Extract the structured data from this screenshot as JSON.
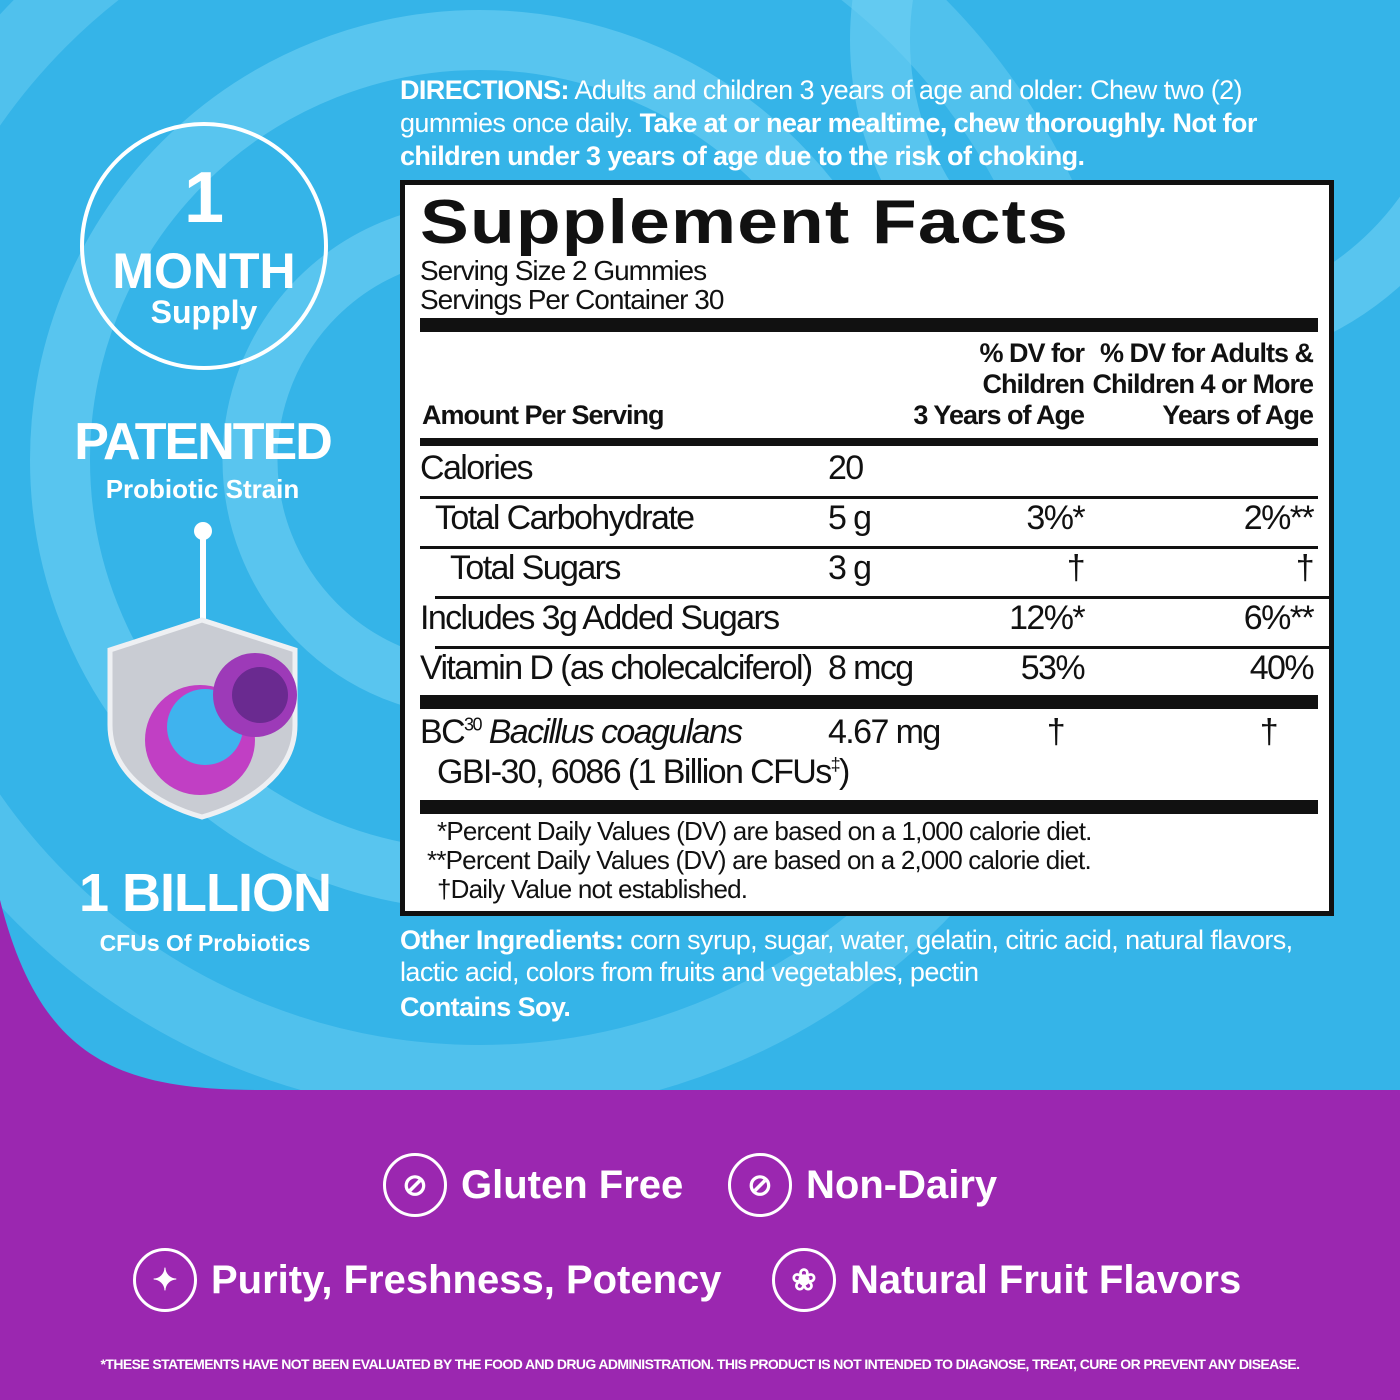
{
  "colors": {
    "background_blue": "#35b4e8",
    "purple": "#9b27b0",
    "label_black": "#111111"
  },
  "left_panel": {
    "month_number": "1",
    "month_label": "MONTH",
    "supply_label": "Supply",
    "patented": "PATENTED",
    "strain": "Probiotic Strain",
    "billion": "1 BILLION",
    "cfus": "CFUs Of Probiotics"
  },
  "directions": {
    "label": "DIRECTIONS:",
    "text": " Adults and children 3 years of age and older: Chew two (2) gummies once daily. ",
    "bold_text": "Take at or near mealtime, chew thoroughly. Not for children under 3 years of age due to the risk of choking."
  },
  "facts": {
    "title": "Supplement Facts",
    "serving_size": "Serving Size 2 Gummies",
    "servings_per_container": "Servings Per Container 30",
    "amount_header": "Amount Per Serving",
    "col_children": [
      "% DV for",
      "Children",
      "3 Years of Age"
    ],
    "col_adults": [
      "% DV for Adults &",
      "Children 4 or More",
      "Years of Age"
    ],
    "rows": [
      {
        "name": "Calories",
        "amount": "20",
        "dv_child": "",
        "dv_adult": ""
      },
      {
        "name": "Total Carbohydrate",
        "amount": "5 g",
        "dv_child": "3%*",
        "dv_adult": "2%**"
      },
      {
        "name": "Total Sugars",
        "amount": "3 g",
        "dv_child": "†",
        "dv_adult": "†"
      },
      {
        "name": "Includes 3g Added Sugars",
        "amount": "",
        "dv_child": "12%*",
        "dv_adult": "6%**"
      },
      {
        "name": "Vitamin D (as cholecalciferol)",
        "amount": "8 mcg",
        "dv_child": "53%",
        "dv_adult": "40%"
      }
    ],
    "probiotic": {
      "prefix": "BC",
      "sup": "30",
      "italic": "Bacillus coagulans",
      "line2": "GBI-30, 6086 (1 Billion CFUs",
      "line2_sup": "‡",
      "line2_end": ")",
      "amount": "4.67 mg",
      "dv_child": "†",
      "dv_adult": "†"
    },
    "footnotes": [
      "*Percent Daily Values (DV) are based on a 1,000 calorie diet.",
      "**Percent Daily Values (DV) are based on a 2,000 calorie diet.",
      "†Daily Value not established."
    ]
  },
  "ingredients": {
    "label": "Other Ingredients:",
    "text": " corn syrup, sugar, water, gelatin, citric acid, natural flavors, lactic acid, colors from fruits and vegetables, pectin",
    "contains": "Contains Soy."
  },
  "badges": [
    {
      "icon": "wheat-crossed-icon",
      "label": "Gluten Free"
    },
    {
      "icon": "milk-bottle-crossed-icon",
      "label": "Non-Dairy"
    },
    {
      "icon": "sparkle-icon",
      "label": "Purity, Freshness, Potency"
    },
    {
      "icon": "fruit-icon",
      "label": "Natural Fruit Flavors"
    }
  ],
  "disclaimer": "*THESE STATEMENTS HAVE NOT BEEN EVALUATED BY THE FOOD AND DRUG ADMINISTRATION. THIS PRODUCT IS NOT INTENDED TO DIAGNOSE, TREAT, CURE OR PREVENT ANY DISEASE."
}
